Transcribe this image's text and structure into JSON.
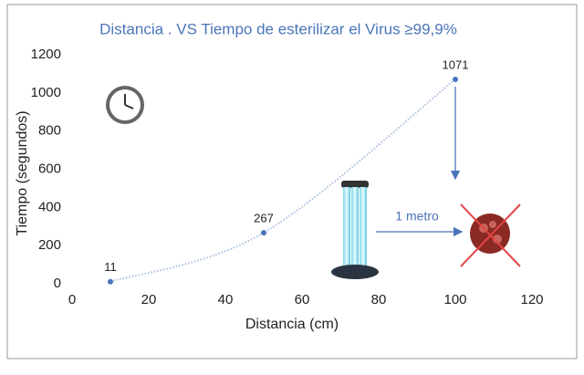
{
  "chart_data": {
    "type": "line",
    "title": "Distancia . VS Tiempo de esterilizar el Virus ≥99,9%",
    "x_label": "Distancia (cm)",
    "y_label": "Tiempo (segundos)",
    "x": [
      10,
      50,
      100
    ],
    "series": [
      {
        "name": "Tiempo",
        "color": "#4a74b8",
        "values": [
          11,
          267,
          1071
        ]
      }
    ],
    "xlim": [
      0,
      120
    ],
    "xticks": [
      0,
      20,
      40,
      60,
      80,
      100,
      120
    ],
    "ylim": [
      0,
      1200
    ],
    "yticks": [
      0,
      200,
      400,
      600,
      800,
      1000,
      1200
    ],
    "grid": false,
    "annotations": [
      "1 metro"
    ]
  }
}
